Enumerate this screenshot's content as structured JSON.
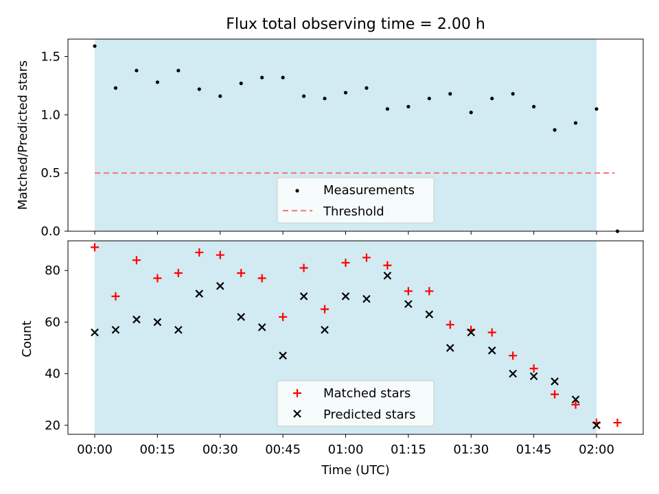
{
  "chart_data": [
    {
      "type": "scatter",
      "title": "Flux total observing time = 2.00 h",
      "ylabel": "Matched/Predicted stars",
      "xlabel": "",
      "ylim": [
        0.0,
        1.65
      ],
      "yticks": [
        "0.0",
        "0.5",
        "1.0",
        "1.5"
      ],
      "grid": false,
      "legend_position": "lower center",
      "shaded_interval": [
        "00:00",
        "02:00"
      ],
      "shade_color": "#add8e6",
      "series": [
        {
          "name": "Measurements",
          "marker": "dot",
          "color": "#000000",
          "points": [
            [
              "00:00",
              1.59
            ],
            [
              "00:05",
              1.23
            ],
            [
              "00:10",
              1.38
            ],
            [
              "00:15",
              1.28
            ],
            [
              "00:20",
              1.38
            ],
            [
              "00:25",
              1.22
            ],
            [
              "00:30",
              1.16
            ],
            [
              "00:35",
              1.27
            ],
            [
              "00:40",
              1.32
            ],
            [
              "00:45",
              1.32
            ],
            [
              "00:50",
              1.16
            ],
            [
              "00:55",
              1.14
            ],
            [
              "01:00",
              1.19
            ],
            [
              "01:05",
              1.23
            ],
            [
              "01:10",
              1.05
            ],
            [
              "01:15",
              1.07
            ],
            [
              "01:20",
              1.14
            ],
            [
              "01:25",
              1.18
            ],
            [
              "01:30",
              1.02
            ],
            [
              "01:35",
              1.14
            ],
            [
              "01:40",
              1.18
            ],
            [
              "01:45",
              1.07
            ],
            [
              "01:50",
              0.87
            ],
            [
              "01:55",
              0.93
            ],
            [
              "02:00",
              1.05
            ],
            [
              "02:05",
              0.0
            ]
          ]
        },
        {
          "name": "Threshold",
          "marker": "dashed-line",
          "color": "#f08080",
          "points": [
            [
              "00:00",
              0.5
            ],
            [
              "02:05",
              0.5
            ]
          ]
        }
      ]
    },
    {
      "type": "scatter",
      "title": "",
      "ylabel": "Count",
      "xlabel": "Time (UTC)",
      "ylim": [
        16.5,
        91.5
      ],
      "yticks": [
        "20",
        "40",
        "60",
        "80"
      ],
      "xticks": [
        "00:00",
        "00:15",
        "00:30",
        "00:45",
        "01:00",
        "01:15",
        "01:30",
        "01:45",
        "02:00"
      ],
      "grid": false,
      "legend_position": "lower center",
      "shaded_interval": [
        "00:00",
        "02:00"
      ],
      "shade_color": "#add8e6",
      "series": [
        {
          "name": "Matched stars",
          "marker": "plus",
          "color": "#ff0000",
          "points": [
            [
              "00:00",
              89
            ],
            [
              "00:05",
              70
            ],
            [
              "00:10",
              84
            ],
            [
              "00:15",
              77
            ],
            [
              "00:20",
              79
            ],
            [
              "00:25",
              87
            ],
            [
              "00:30",
              86
            ],
            [
              "00:35",
              79
            ],
            [
              "00:40",
              77
            ],
            [
              "00:45",
              62
            ],
            [
              "00:50",
              81
            ],
            [
              "00:55",
              65
            ],
            [
              "01:00",
              83
            ],
            [
              "01:05",
              85
            ],
            [
              "01:10",
              82
            ],
            [
              "01:15",
              72
            ],
            [
              "01:20",
              72
            ],
            [
              "01:25",
              59
            ],
            [
              "01:30",
              57
            ],
            [
              "01:35",
              56
            ],
            [
              "01:40",
              47
            ],
            [
              "01:45",
              42
            ],
            [
              "01:50",
              32
            ],
            [
              "01:55",
              28
            ],
            [
              "02:00",
              21
            ],
            [
              "02:05",
              21
            ]
          ]
        },
        {
          "name": "Predicted stars",
          "marker": "x",
          "color": "#000000",
          "points": [
            [
              "00:00",
              56
            ],
            [
              "00:05",
              57
            ],
            [
              "00:10",
              61
            ],
            [
              "00:15",
              60
            ],
            [
              "00:20",
              57
            ],
            [
              "00:25",
              71
            ],
            [
              "00:30",
              74
            ],
            [
              "00:35",
              62
            ],
            [
              "00:40",
              58
            ],
            [
              "00:45",
              47
            ],
            [
              "00:50",
              70
            ],
            [
              "00:55",
              57
            ],
            [
              "01:00",
              70
            ],
            [
              "01:05",
              69
            ],
            [
              "01:10",
              78
            ],
            [
              "01:15",
              67
            ],
            [
              "01:20",
              63
            ],
            [
              "01:25",
              50
            ],
            [
              "01:30",
              56
            ],
            [
              "01:35",
              49
            ],
            [
              "01:40",
              40
            ],
            [
              "01:45",
              39
            ],
            [
              "01:50",
              37
            ],
            [
              "01:55",
              30
            ],
            [
              "02:00",
              20
            ]
          ]
        }
      ]
    }
  ]
}
